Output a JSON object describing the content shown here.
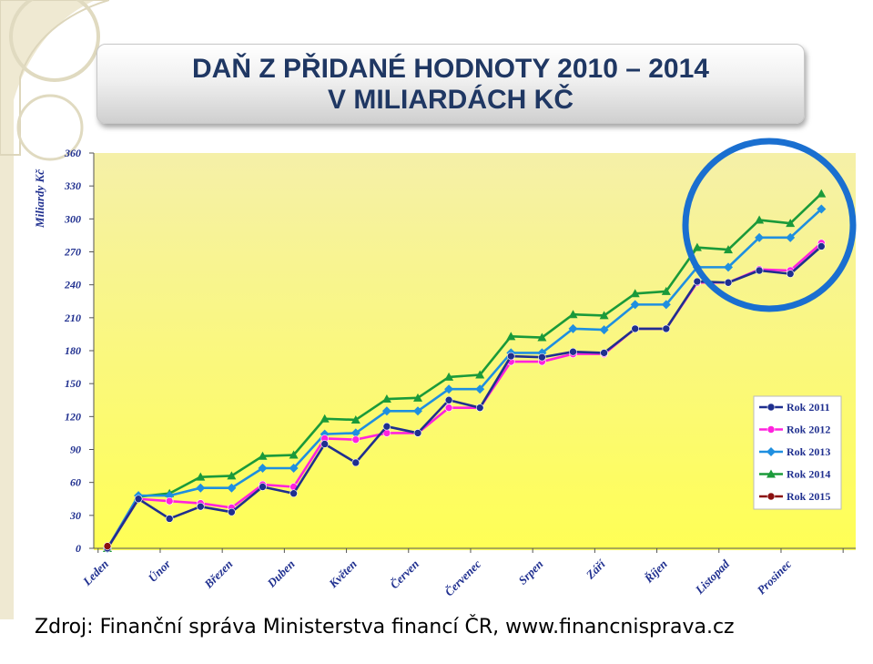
{
  "title": {
    "line1": "DAŇ Z PŘIDANÉ HODNOTY 2010 – 2014",
    "line2": "V MILIARDÁCH KČ"
  },
  "source": "Zdroj: Finanční správa Ministerstva financí ČR, www.financnisprava.cz",
  "colors": {
    "plot_bg_top": "#f5f0a8",
    "plot_bg_bottom": "#ffff55",
    "highlight_circle": "#1a6fd0",
    "deco": "#e8e2c8"
  },
  "chart_data": {
    "type": "line",
    "ylabel": "Miliardy Kč",
    "xlabel": "",
    "ylim": [
      0,
      360
    ],
    "yticks": [
      0,
      30,
      60,
      90,
      120,
      150,
      180,
      210,
      240,
      270,
      300,
      330,
      360
    ],
    "grid": false,
    "legend_position": "bottom-right",
    "x_labels": [
      "Leden",
      "Únor",
      "Březen",
      "Duben",
      "Květen",
      "Červen",
      "Červenec",
      "Srpen",
      "Září",
      "Říjen",
      "Listopad",
      "Prosinec"
    ],
    "series": [
      {
        "name": "Rok 2011",
        "color": "#1f2f8f",
        "marker": "circle",
        "values": [
          0,
          45,
          27,
          38,
          33,
          56,
          50,
          95,
          78,
          111,
          105,
          135,
          128,
          175,
          174,
          179,
          178,
          200,
          200,
          243,
          242,
          253,
          250,
          275
        ]
      },
      {
        "name": "Rok 2012",
        "color": "#ff22dd",
        "marker": "circle",
        "values": [
          0,
          45,
          43,
          41,
          37,
          58,
          56,
          100,
          99,
          105,
          105,
          128,
          128,
          170,
          170,
          177,
          177,
          200,
          200,
          242,
          242,
          254,
          253,
          278
        ]
      },
      {
        "name": "Rok 2013",
        "color": "#1f8fe0",
        "marker": "diamond",
        "values": [
          0,
          48,
          48,
          55,
          55,
          73,
          73,
          104,
          105,
          125,
          125,
          145,
          145,
          178,
          178,
          200,
          199,
          222,
          222,
          256,
          256,
          283,
          283,
          309
        ]
      },
      {
        "name": "Rok 2014",
        "color": "#1a9a3a",
        "marker": "triangle",
        "values": [
          0,
          47,
          50,
          65,
          66,
          84,
          85,
          118,
          117,
          136,
          137,
          156,
          158,
          193,
          192,
          213,
          212,
          232,
          234,
          274,
          272,
          299,
          296,
          323
        ]
      },
      {
        "name": "Rok 2015",
        "color": "#8b1010",
        "marker": "circle",
        "values": [
          2
        ]
      }
    ]
  }
}
